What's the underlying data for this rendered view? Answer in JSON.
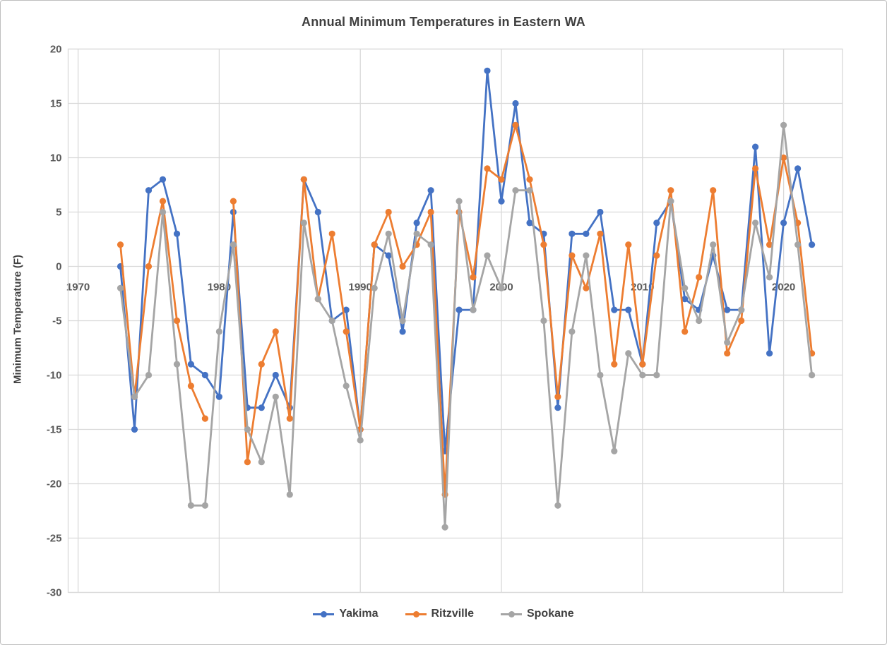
{
  "window": {
    "background": "#ffffff",
    "border_color": "#bfbfbf"
  },
  "chart_data": {
    "type": "line",
    "title": "Annual Minimum Temperatures in Eastern WA",
    "xlabel": "",
    "ylabel": "Minimum Temperature (F)",
    "x": [
      1973,
      1974,
      1975,
      1976,
      1977,
      1978,
      1979,
      1980,
      1981,
      1982,
      1983,
      1984,
      1985,
      1986,
      1987,
      1988,
      1989,
      1990,
      1991,
      1992,
      1993,
      1994,
      1995,
      1996,
      1997,
      1998,
      1999,
      2000,
      2001,
      2002,
      2003,
      2004,
      2005,
      2006,
      2007,
      2008,
      2009,
      2010,
      2011,
      2012,
      2013,
      2014,
      2015,
      2016,
      2017,
      2018,
      2019,
      2020,
      2021,
      2022
    ],
    "series": [
      {
        "name": "Yakima",
        "color": "#4472C4",
        "values": [
          0,
          -15,
          7,
          8,
          3,
          -9,
          -10,
          -12,
          5,
          -13,
          -13,
          -10,
          -13,
          8,
          5,
          -5,
          -4,
          -15,
          2,
          1,
          -6,
          4,
          7,
          -17,
          -4,
          -4,
          18,
          6,
          15,
          4,
          3,
          -13,
          3,
          3,
          5,
          -4,
          -4,
          -9,
          4,
          6,
          -3,
          -4,
          1,
          -4,
          -4,
          11,
          -8,
          4,
          9,
          2
        ]
      },
      {
        "name": "Ritzville",
        "color": "#ED7D31",
        "values": [
          2,
          -12,
          0,
          6,
          -5,
          -11,
          -14,
          null,
          6,
          -18,
          -9,
          -6,
          -14,
          8,
          -3,
          3,
          -6,
          -15,
          2,
          5,
          0,
          2,
          5,
          -21,
          5,
          -1,
          9,
          8,
          13,
          8,
          2,
          -12,
          1,
          -2,
          3,
          -9,
          2,
          -9,
          1,
          7,
          -6,
          -1,
          7,
          -8,
          -5,
          9,
          2,
          10,
          4,
          -8
        ]
      },
      {
        "name": "Spokane",
        "color": "#A5A5A5",
        "values": [
          -2,
          -12,
          -10,
          5,
          -9,
          -22,
          -22,
          -6,
          2,
          -15,
          -18,
          -12,
          -21,
          4,
          -3,
          -5,
          -11,
          -16,
          -2,
          3,
          -5,
          3,
          2,
          -24,
          6,
          -4,
          1,
          -2,
          7,
          7,
          -5,
          -22,
          -6,
          1,
          -10,
          -17,
          -8,
          -10,
          -10,
          6,
          -2,
          -5,
          2,
          -7,
          -4,
          4,
          -1,
          13,
          2,
          -10
        ]
      }
    ],
    "ylim": [
      -30,
      20
    ],
    "yticks": [
      20,
      15,
      10,
      5,
      0,
      -5,
      -10,
      -15,
      -20,
      -25,
      -30
    ],
    "xticks": [
      1970,
      1980,
      1990,
      2000,
      2010,
      2020
    ],
    "grid": "horizontal every 5, vertical every decade",
    "gridline_color": "#D9D9D9",
    "tick_label_color": "#595959",
    "legend_position": "bottom",
    "marker": "circle"
  }
}
